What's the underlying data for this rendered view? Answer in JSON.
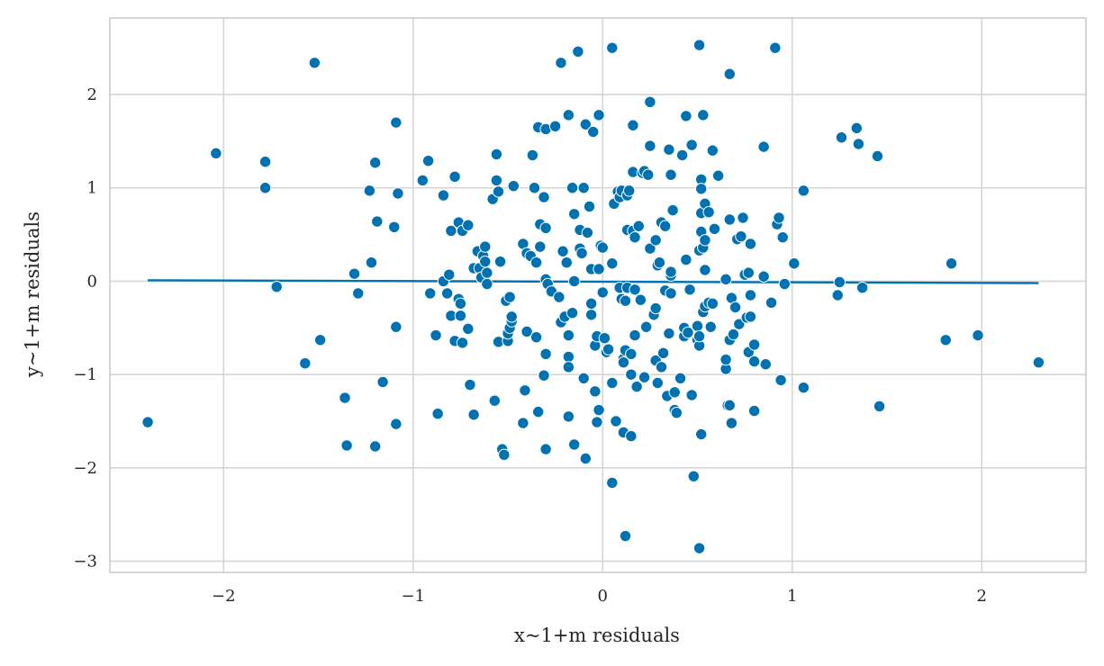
{
  "chart_data": {
    "type": "scatter",
    "xlabel": "x~1+m residuals",
    "ylabel": "y~1+m residuals",
    "xlim": [
      -2.6,
      2.55
    ],
    "ylim": [
      -3.12,
      2.82
    ],
    "xticks": [
      -2,
      -1,
      0,
      1,
      2
    ],
    "yticks": [
      -3,
      -2,
      -1,
      0,
      1,
      2
    ],
    "xtick_labels": [
      "−2",
      "−1",
      "0",
      "1",
      "2"
    ],
    "ytick_labels": [
      "−3",
      "−2",
      "−1",
      "0",
      "1",
      "2"
    ],
    "grid": true,
    "point_color": "#0072b2",
    "line_color": "#0072b2",
    "fit_line": {
      "x": [
        -2.4,
        2.3
      ],
      "y": [
        0.01,
        -0.02
      ]
    },
    "points": [
      [
        -2.4,
        -1.51
      ],
      [
        -2.04,
        1.37
      ],
      [
        -1.78,
        1.28
      ],
      [
        -1.78,
        1.0
      ],
      [
        -1.72,
        -0.06
      ],
      [
        -1.57,
        -0.88
      ],
      [
        -1.52,
        2.34
      ],
      [
        -1.49,
        -0.63
      ],
      [
        -1.36,
        -1.25
      ],
      [
        -1.35,
        -1.76
      ],
      [
        -1.31,
        0.08
      ],
      [
        -1.29,
        -0.13
      ],
      [
        -1.23,
        0.97
      ],
      [
        -1.22,
        0.2
      ],
      [
        -1.2,
        1.27
      ],
      [
        -1.2,
        -1.77
      ],
      [
        -1.19,
        0.64
      ],
      [
        -1.16,
        -1.08
      ],
      [
        -1.1,
        0.58
      ],
      [
        -1.09,
        1.7
      ],
      [
        -1.09,
        -0.49
      ],
      [
        -1.09,
        -1.53
      ],
      [
        -1.08,
        0.94
      ],
      [
        -0.95,
        1.08
      ],
      [
        -0.92,
        1.29
      ],
      [
        -0.91,
        -0.13
      ],
      [
        -0.88,
        -0.58
      ],
      [
        -0.87,
        -1.42
      ],
      [
        -0.84,
        0.92
      ],
      [
        -0.84,
        0.0
      ],
      [
        -0.82,
        -0.13
      ],
      [
        -0.81,
        0.07
      ],
      [
        -0.8,
        0.54
      ],
      [
        -0.8,
        -0.37
      ],
      [
        -0.78,
        1.12
      ],
      [
        -0.78,
        -0.64
      ],
      [
        -0.76,
        -0.19
      ],
      [
        -0.76,
        0.63
      ],
      [
        -0.75,
        -0.37
      ],
      [
        -0.75,
        -0.24
      ],
      [
        -0.74,
        0.54
      ],
      [
        -0.74,
        -0.66
      ],
      [
        -0.71,
        0.6
      ],
      [
        -0.71,
        -0.51
      ],
      [
        -0.7,
        -1.11
      ],
      [
        -0.68,
        0.14
      ],
      [
        -0.68,
        -1.43
      ],
      [
        -0.66,
        0.32
      ],
      [
        -0.65,
        0.14
      ],
      [
        -0.64,
        0.04
      ],
      [
        -0.63,
        0.27
      ],
      [
        -0.62,
        0.37
      ],
      [
        -0.62,
        0.21
      ],
      [
        -0.61,
        0.09
      ],
      [
        -0.61,
        -0.03
      ],
      [
        -0.58,
        0.88
      ],
      [
        -0.57,
        -1.28
      ],
      [
        -0.56,
        1.36
      ],
      [
        -0.56,
        1.08
      ],
      [
        -0.55,
        0.96
      ],
      [
        -0.55,
        -0.65
      ],
      [
        -0.54,
        0.21
      ],
      [
        -0.53,
        -1.8
      ],
      [
        -0.52,
        -1.86
      ],
      [
        -0.51,
        -0.21
      ],
      [
        -0.5,
        -0.64
      ],
      [
        -0.5,
        -0.56
      ],
      [
        -0.49,
        -0.5
      ],
      [
        -0.49,
        -0.17
      ],
      [
        -0.48,
        -0.43
      ],
      [
        -0.48,
        -0.38
      ],
      [
        -0.47,
        1.02
      ],
      [
        -0.42,
        0.4
      ],
      [
        -0.42,
        -1.52
      ],
      [
        -0.41,
        -1.17
      ],
      [
        -0.4,
        -0.54
      ],
      [
        -0.4,
        0.3
      ],
      [
        -0.38,
        0.27
      ],
      [
        -0.37,
        1.35
      ],
      [
        -0.36,
        1.0
      ],
      [
        -0.35,
        0.2
      ],
      [
        -0.35,
        -0.6
      ],
      [
        -0.34,
        1.65
      ],
      [
        -0.34,
        -1.4
      ],
      [
        -0.33,
        0.37
      ],
      [
        -0.33,
        0.61
      ],
      [
        -0.31,
        0.9
      ],
      [
        -0.31,
        -1.01
      ],
      [
        -0.3,
        0.57
      ],
      [
        -0.3,
        1.63
      ],
      [
        -0.3,
        0.02
      ],
      [
        -0.3,
        -0.78
      ],
      [
        -0.3,
        -1.8
      ],
      [
        -0.29,
        -0.03
      ],
      [
        -0.27,
        -0.11
      ],
      [
        -0.25,
        1.66
      ],
      [
        -0.23,
        -0.17
      ],
      [
        -0.22,
        2.34
      ],
      [
        -0.22,
        -0.44
      ],
      [
        -0.21,
        0.32
      ],
      [
        -0.2,
        -0.38
      ],
      [
        -0.19,
        0.2
      ],
      [
        -0.18,
        1.78
      ],
      [
        -0.18,
        -0.58
      ],
      [
        -0.18,
        -0.81
      ],
      [
        -0.18,
        -0.92
      ],
      [
        -0.18,
        -1.45
      ],
      [
        -0.16,
        -0.34
      ],
      [
        -0.16,
        1.0
      ],
      [
        -0.15,
        0.0
      ],
      [
        -0.15,
        0.72
      ],
      [
        -0.15,
        -1.75
      ],
      [
        -0.13,
        2.46
      ],
      [
        -0.12,
        0.35
      ],
      [
        -0.12,
        0.55
      ],
      [
        -0.11,
        0.3
      ],
      [
        -0.1,
        1.0
      ],
      [
        -0.1,
        -1.04
      ],
      [
        -0.09,
        1.68
      ],
      [
        -0.09,
        -1.9
      ],
      [
        -0.08,
        0.52
      ],
      [
        -0.07,
        0.8
      ],
      [
        -0.06,
        0.13
      ],
      [
        -0.06,
        -0.24
      ],
      [
        -0.06,
        -0.36
      ],
      [
        -0.05,
        1.6
      ],
      [
        -0.04,
        -0.69
      ],
      [
        -0.04,
        -1.18
      ],
      [
        -0.03,
        -0.59
      ],
      [
        -0.03,
        -1.51
      ],
      [
        -0.02,
        0.13
      ],
      [
        -0.02,
        1.78
      ],
      [
        -0.02,
        -1.38
      ],
      [
        -0.01,
        0.38
      ],
      [
        0.0,
        0.36
      ],
      [
        0.0,
        -0.12
      ],
      [
        0.01,
        -0.61
      ],
      [
        0.02,
        -0.76
      ],
      [
        0.03,
        -0.73
      ],
      [
        0.05,
        2.5
      ],
      [
        0.05,
        0.19
      ],
      [
        0.05,
        -1.09
      ],
      [
        0.05,
        -2.16
      ],
      [
        0.06,
        0.83
      ],
      [
        0.07,
        -1.5
      ],
      [
        0.08,
        0.96
      ],
      [
        0.09,
        0.9
      ],
      [
        0.09,
        -0.07
      ],
      [
        0.1,
        0.97
      ],
      [
        0.1,
        -0.19
      ],
      [
        0.11,
        -0.83
      ],
      [
        0.11,
        -0.87
      ],
      [
        0.11,
        -1.62
      ],
      [
        0.12,
        -2.73
      ],
      [
        0.12,
        -0.74
      ],
      [
        0.12,
        -0.21
      ],
      [
        0.13,
        -0.07
      ],
      [
        0.13,
        0.92
      ],
      [
        0.13,
        0.55
      ],
      [
        0.14,
        0.97
      ],
      [
        0.15,
        -1.66
      ],
      [
        0.15,
        -1.0
      ],
      [
        0.15,
        -0.78
      ],
      [
        0.16,
        1.17
      ],
      [
        0.16,
        1.67
      ],
      [
        0.16,
        0.54
      ],
      [
        0.17,
        -0.09
      ],
      [
        0.17,
        0.47
      ],
      [
        0.17,
        -0.58
      ],
      [
        0.18,
        -1.13
      ],
      [
        0.19,
        0.59
      ],
      [
        0.2,
        -0.2
      ],
      [
        0.21,
        1.16
      ],
      [
        0.22,
        1.18
      ],
      [
        0.22,
        -1.03
      ],
      [
        0.23,
        -0.49
      ],
      [
        0.24,
        1.14
      ],
      [
        0.25,
        1.92
      ],
      [
        0.25,
        1.45
      ],
      [
        0.25,
        0.35
      ],
      [
        0.27,
        -0.36
      ],
      [
        0.28,
        -0.85
      ],
      [
        0.28,
        0.44
      ],
      [
        0.28,
        -0.29
      ],
      [
        0.29,
        -1.09
      ],
      [
        0.29,
        0.17
      ],
      [
        0.3,
        0.2
      ],
      [
        0.31,
        0.63
      ],
      [
        0.31,
        -0.92
      ],
      [
        0.32,
        -0.77
      ],
      [
        0.33,
        -0.1
      ],
      [
        0.33,
        0.59
      ],
      [
        0.34,
        -1.23
      ],
      [
        0.35,
        1.41
      ],
      [
        0.35,
        -0.56
      ],
      [
        0.36,
        0.06
      ],
      [
        0.36,
        0.1
      ],
      [
        0.36,
        -0.13
      ],
      [
        0.36,
        1.14
      ],
      [
        0.37,
        0.76
      ],
      [
        0.38,
        -1.19
      ],
      [
        0.38,
        -1.38
      ],
      [
        0.39,
        -1.41
      ],
      [
        0.41,
        -1.04
      ],
      [
        0.42,
        1.35
      ],
      [
        0.43,
        -0.59
      ],
      [
        0.43,
        -0.5
      ],
      [
        0.44,
        1.77
      ],
      [
        0.44,
        0.23
      ],
      [
        0.45,
        -0.55
      ],
      [
        0.46,
        -0.09
      ],
      [
        0.47,
        -1.22
      ],
      [
        0.47,
        1.46
      ],
      [
        0.48,
        -2.09
      ],
      [
        0.5,
        -0.48
      ],
      [
        0.5,
        -0.63
      ],
      [
        0.51,
        2.53
      ],
      [
        0.51,
        -0.69
      ],
      [
        0.51,
        -2.86
      ],
      [
        0.51,
        -0.59
      ],
      [
        0.51,
        0.33
      ],
      [
        0.52,
        -1.64
      ],
      [
        0.52,
        1.09
      ],
      [
        0.52,
        0.99
      ],
      [
        0.52,
        0.53
      ],
      [
        0.52,
        0.73
      ],
      [
        0.53,
        -0.33
      ],
      [
        0.53,
        1.78
      ],
      [
        0.53,
        0.36
      ],
      [
        0.54,
        0.83
      ],
      [
        0.54,
        -0.27
      ],
      [
        0.54,
        0.44
      ],
      [
        0.54,
        0.12
      ],
      [
        0.56,
        0.74
      ],
      [
        0.56,
        -0.23
      ],
      [
        0.57,
        -0.49
      ],
      [
        0.58,
        1.4
      ],
      [
        0.58,
        -0.24
      ],
      [
        0.59,
        0.56
      ],
      [
        0.61,
        1.13
      ],
      [
        0.65,
        -0.94
      ],
      [
        0.65,
        0.02
      ],
      [
        0.65,
        -0.84
      ],
      [
        0.66,
        -1.33
      ],
      [
        0.67,
        -1.33
      ],
      [
        0.67,
        0.66
      ],
      [
        0.67,
        2.22
      ],
      [
        0.67,
        -0.63
      ],
      [
        0.68,
        -1.52
      ],
      [
        0.68,
        -0.18
      ],
      [
        0.69,
        -0.57
      ],
      [
        0.7,
        -0.28
      ],
      [
        0.71,
        0.45
      ],
      [
        0.72,
        -0.46
      ],
      [
        0.73,
        0.48
      ],
      [
        0.74,
        0.68
      ],
      [
        0.75,
        0.07
      ],
      [
        0.76,
        -0.39
      ],
      [
        0.77,
        0.09
      ],
      [
        0.77,
        -0.76
      ],
      [
        0.78,
        -0.15
      ],
      [
        0.78,
        0.4
      ],
      [
        0.78,
        -0.38
      ],
      [
        0.8,
        -0.68
      ],
      [
        0.8,
        -1.39
      ],
      [
        0.8,
        -0.86
      ],
      [
        0.85,
        0.05
      ],
      [
        0.85,
        1.44
      ],
      [
        0.86,
        -0.89
      ],
      [
        0.89,
        -0.23
      ],
      [
        0.91,
        2.5
      ],
      [
        0.92,
        0.61
      ],
      [
        0.93,
        0.68
      ],
      [
        0.94,
        -1.06
      ],
      [
        0.95,
        0.47
      ],
      [
        0.96,
        -0.03
      ],
      [
        1.01,
        0.19
      ],
      [
        1.06,
        0.97
      ],
      [
        1.06,
        -1.14
      ],
      [
        1.24,
        -0.15
      ],
      [
        1.25,
        -0.01
      ],
      [
        1.26,
        1.54
      ],
      [
        1.34,
        1.64
      ],
      [
        1.35,
        1.47
      ],
      [
        1.37,
        -0.07
      ],
      [
        1.45,
        1.34
      ],
      [
        1.46,
        -1.34
      ],
      [
        1.81,
        -0.63
      ],
      [
        1.84,
        0.19
      ],
      [
        1.98,
        -0.58
      ],
      [
        2.3,
        -0.87
      ]
    ]
  }
}
